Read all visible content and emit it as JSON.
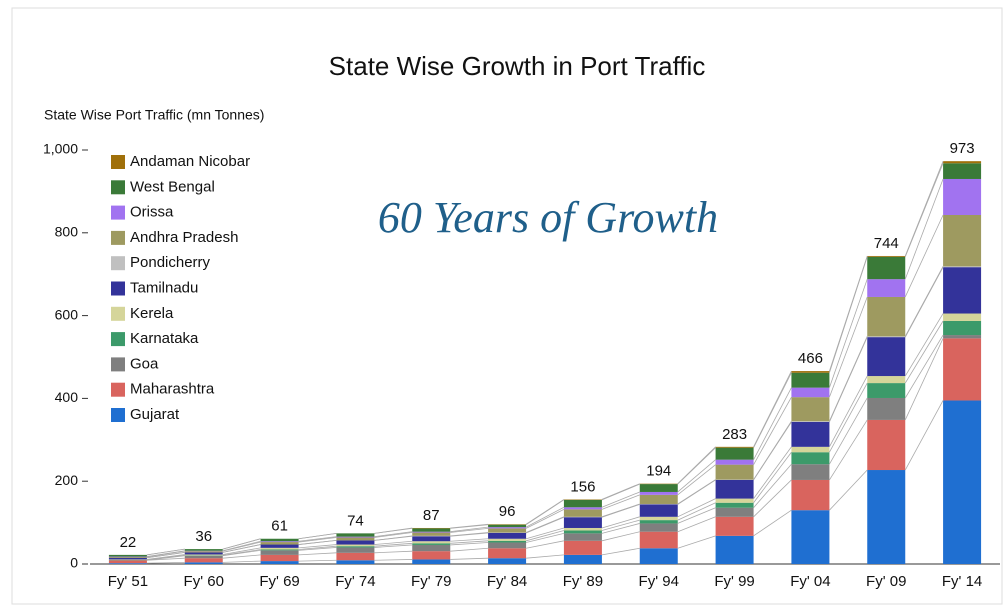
{
  "chart_data": {
    "type": "stacked_bar",
    "title": "State Wise Growth in Port Traffic",
    "ylabel": "State Wise Port Traffic (mn Tonnes)",
    "annotation": "60 Years of Growth",
    "categories": [
      "Fy' 51",
      "Fy' 60",
      "Fy' 69",
      "Fy' 74",
      "Fy' 79",
      "Fy' 84",
      "Fy' 89",
      "Fy' 94",
      "Fy' 99",
      "Fy' 04",
      "Fy' 09",
      "Fy' 14"
    ],
    "total_labels": [
      22,
      36,
      61,
      74,
      87,
      96,
      156,
      194,
      283,
      466,
      744,
      973
    ],
    "series": [
      {
        "name": "Gujarat",
        "color": "#1f6fd1",
        "values": [
          2,
          4,
          7,
          9,
          11,
          14,
          22,
          38,
          68,
          130,
          227,
          395
        ]
      },
      {
        "name": "Maharashtra",
        "color": "#d9645e",
        "values": [
          7,
          10,
          15,
          18,
          20,
          24,
          34,
          40,
          46,
          73,
          121,
          150
        ]
      },
      {
        "name": "Goa",
        "color": "#7f7f7f",
        "values": [
          0,
          6,
          11,
          13,
          15,
          14,
          18,
          20,
          22,
          38,
          53,
          8
        ]
      },
      {
        "name": "Karnataka",
        "color": "#3c9a6a",
        "values": [
          1,
          1,
          2,
          3,
          4,
          4,
          7,
          8,
          12,
          29,
          36,
          34
        ]
      },
      {
        "name": "Kerela",
        "color": "#d5d59a",
        "values": [
          1,
          2,
          4,
          4,
          5,
          5,
          6,
          8,
          10,
          13,
          17,
          18
        ]
      },
      {
        "name": "Tamilnadu",
        "color": "#33339a",
        "values": [
          4,
          5,
          8,
          10,
          12,
          14,
          26,
          30,
          45,
          60,
          94,
          112
        ]
      },
      {
        "name": "Pondicherry",
        "color": "#c0c0c0",
        "values": [
          0,
          0,
          0,
          0,
          1,
          1,
          1,
          1,
          1,
          2,
          2,
          2
        ]
      },
      {
        "name": "Andhra Pradesh",
        "color": "#9e9a60",
        "values": [
          2,
          3,
          6,
          7,
          8,
          10,
          18,
          22,
          36,
          58,
          95,
          124
        ]
      },
      {
        "name": "Orissa",
        "color": "#a173f0",
        "values": [
          1,
          1,
          2,
          2,
          2,
          3,
          5,
          7,
          12,
          23,
          43,
          87
        ]
      },
      {
        "name": "West Bengal",
        "color": "#3a7a38",
        "values": [
          4,
          4,
          6,
          8,
          8,
          6,
          18,
          19,
          29,
          36,
          54,
          38
        ]
      },
      {
        "name": "Andaman Nicobar",
        "color": "#a0700a",
        "values": [
          0,
          0,
          0,
          0,
          1,
          1,
          1,
          1,
          2,
          4,
          2,
          5
        ]
      }
    ],
    "ylim": [
      0,
      1000
    ],
    "yticks": [
      0,
      200,
      400,
      600,
      800,
      {
        "value": 1000,
        "label": "1,000"
      }
    ],
    "grid": false
  }
}
